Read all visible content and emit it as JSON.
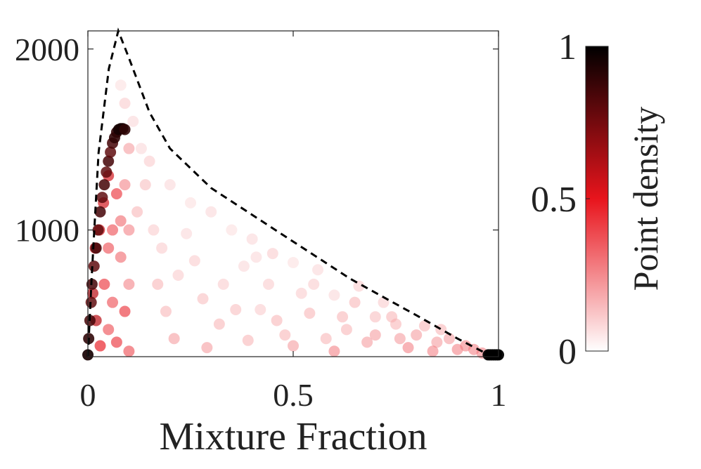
{
  "chart_data": {
    "type": "scatter",
    "xlabel": "Mixture Fraction",
    "xlim": [
      0,
      1
    ],
    "xticks": [
      0,
      0.5,
      1
    ],
    "ylim": [
      300,
      2100
    ],
    "yticks": [
      1000,
      2000
    ],
    "colormap": [
      "#ffffff",
      "#e8141c",
      "#000000"
    ],
    "clim": [
      0,
      1
    ],
    "cticks": [
      0,
      0.5,
      1
    ],
    "clabel": "Point density",
    "curve": {
      "x": [
        0,
        0.009,
        0.026,
        0.051,
        0.074,
        0.1,
        0.15,
        0.2,
        0.3,
        0.47,
        0.64,
        0.81,
        0.9,
        0.985
      ],
      "y": [
        300,
        729,
        1426,
        1891,
        2100,
        1950,
        1650,
        1450,
        1232,
        980,
        729,
        516,
        400,
        300
      ]
    },
    "x": [
      0.15,
      0.2,
      0.25,
      0.3,
      0.35,
      0.4,
      0.45,
      0.5,
      0.55,
      0.6,
      0.65,
      0.7,
      0.75,
      0.8,
      0.85,
      0.9,
      0.12,
      0.18,
      0.22,
      0.28,
      0.32,
      0.38,
      0.42,
      0.48,
      0.52,
      0.58,
      0.62,
      0.68,
      0.72,
      0.78,
      0.82,
      0.88,
      0.92,
      0.11,
      0.13,
      0.14,
      0.16,
      0.17,
      0.19,
      0.21,
      0.24,
      0.26,
      0.29,
      0.33,
      0.36,
      0.39,
      0.41,
      0.44,
      0.46,
      0.5,
      0.54,
      0.56,
      0.6,
      0.63,
      0.66,
      0.7,
      0.74,
      0.76,
      0.84,
      0.86,
      0.94,
      0.96,
      0.08,
      0.09,
      0.1,
      0.09,
      0.1,
      0.08,
      0.1,
      0.06,
      0.09,
      0.05,
      0.07,
      0.1,
      0.03,
      0.04,
      0.06,
      0.07,
      0.05,
      0.08,
      0.012,
      0.018,
      0.028,
      0.038,
      0.05,
      0.02,
      0,
      0.002,
      0.005,
      0.008,
      0.01,
      0.015,
      0.02,
      0.025,
      0.03,
      0.035,
      0.04,
      0.045,
      0.05,
      0.055,
      0.06,
      0.065,
      0.07,
      0.075,
      0.08,
      0.085,
      0.09,
      0.975,
      0.98,
      0.985,
      0.99,
      0.995,
      1
    ],
    "y": [
      1380,
      1250,
      1150,
      1100,
      1000,
      950,
      870,
      820,
      700,
      640,
      600,
      520,
      480,
      420,
      380,
      340,
      1100,
      900,
      750,
      620,
      480,
      800,
      560,
      420,
      650,
      400,
      520,
      380,
      600,
      350,
      470,
      400,
      360,
      1600,
      1450,
      1250,
      1000,
      700,
      550,
      400,
      980,
      830,
      350,
      700,
      560,
      390,
      850,
      700,
      500,
      360,
      540,
      780,
      330,
      450,
      690,
      420,
      520,
      400,
      330,
      450,
      340,
      320,
      1800,
      1700,
      1450,
      1250,
      1000,
      850,
      700,
      600,
      550,
      450,
      380,
      330,
      360,
      700,
      1000,
      1200,
      900,
      1050,
      650,
      900,
      1000,
      1150,
      1300,
      500,
      310,
      400,
      500,
      600,
      700,
      800,
      900,
      1000,
      1100,
      1180,
      1250,
      1320,
      1380,
      1430,
      1480,
      1510,
      1540,
      1555,
      1560,
      1560,
      1555,
      310,
      310,
      310,
      310,
      310,
      310
    ],
    "density": [
      0.15,
      0.12,
      0.1,
      0.12,
      0.1,
      0.12,
      0.15,
      0.1,
      0.15,
      0.12,
      0.2,
      0.18,
      0.2,
      0.25,
      0.25,
      0.3,
      0.2,
      0.15,
      0.15,
      0.18,
      0.2,
      0.12,
      0.15,
      0.2,
      0.15,
      0.2,
      0.2,
      0.25,
      0.15,
      0.3,
      0.2,
      0.25,
      0.3,
      0.12,
      0.12,
      0.18,
      0.15,
      0.2,
      0.2,
      0.25,
      0.12,
      0.15,
      0.25,
      0.15,
      0.18,
      0.2,
      0.12,
      0.15,
      0.2,
      0.25,
      0.2,
      0.12,
      0.3,
      0.2,
      0.15,
      0.25,
      0.2,
      0.25,
      0.3,
      0.2,
      0.3,
      0.3,
      0.1,
      0.15,
      0.25,
      0.3,
      0.3,
      0.35,
      0.3,
      0.4,
      0.45,
      0.4,
      0.45,
      0.4,
      0.5,
      0.45,
      0.4,
      0.45,
      0.4,
      0.35,
      0.6,
      0.6,
      0.55,
      0.55,
      0.55,
      0.6,
      0.95,
      0.9,
      0.85,
      0.8,
      0.85,
      0.8,
      0.85,
      0.8,
      0.85,
      0.8,
      0.85,
      0.8,
      0.85,
      0.8,
      0.85,
      0.9,
      0.9,
      0.95,
      0.95,
      0.95,
      0.9,
      1,
      1,
      1,
      1,
      1,
      1
    ]
  }
}
